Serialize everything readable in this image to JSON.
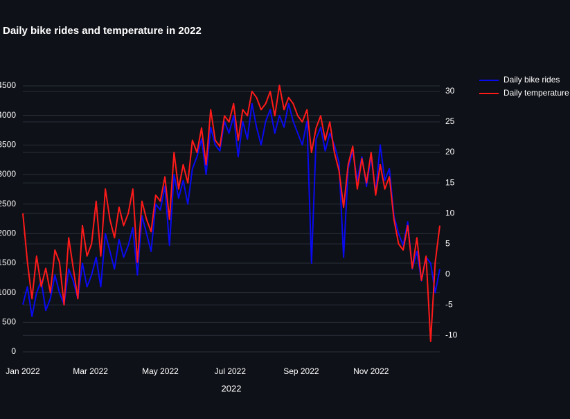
{
  "chart_data": {
    "type": "line",
    "title": "Daily bike rides and temperature in 2022",
    "x_label": "2022",
    "x": [
      1,
      5,
      9,
      13,
      17,
      21,
      25,
      29,
      33,
      37,
      41,
      45,
      49,
      53,
      57,
      61,
      65,
      69,
      73,
      77,
      81,
      85,
      89,
      93,
      97,
      101,
      105,
      109,
      113,
      117,
      121,
      125,
      129,
      133,
      137,
      141,
      145,
      149,
      153,
      157,
      161,
      165,
      169,
      173,
      177,
      181,
      185,
      189,
      193,
      197,
      201,
      205,
      209,
      213,
      217,
      221,
      225,
      229,
      233,
      237,
      241,
      245,
      249,
      253,
      257,
      261,
      265,
      269,
      273,
      277,
      281,
      285,
      289,
      293,
      297,
      301,
      305,
      309,
      313,
      317,
      321,
      325,
      329,
      333,
      337,
      341,
      345,
      349,
      353,
      357,
      361,
      365
    ],
    "xlim": [
      1,
      365
    ],
    "xticks": [
      {
        "value": 1,
        "label": "Jan 2022"
      },
      {
        "value": 60,
        "label": "Mar 2022"
      },
      {
        "value": 121,
        "label": "May 2022"
      },
      {
        "value": 182,
        "label": "Jul 2022"
      },
      {
        "value": 244,
        "label": "Sep 2022"
      },
      {
        "value": 305,
        "label": "Nov 2022"
      }
    ],
    "ylim": [
      0,
      4664
    ],
    "yticks": [
      0,
      500,
      1000,
      1500,
      2000,
      2500,
      3000,
      3500,
      4000,
      4500
    ],
    "y2lim": [
      -12.7,
      32.5
    ],
    "y2ticks": [
      -10,
      -5,
      0,
      5,
      10,
      15,
      20,
      25,
      30
    ],
    "grid": true,
    "legend": "top-right",
    "series": [
      {
        "name": "Daily bike rides",
        "color": "#0a0af0",
        "values": [
          800,
          1100,
          600,
          1000,
          1200,
          700,
          900,
          1300,
          1000,
          800,
          1400,
          1200,
          900,
          1500,
          1100,
          1300,
          1600,
          1100,
          2000,
          1700,
          1400,
          1900,
          1600,
          1800,
          2100,
          1300,
          2300,
          2000,
          1700,
          2500,
          2400,
          2800,
          1800,
          3000,
          2600,
          2900,
          2500,
          3100,
          3300,
          3600,
          3000,
          3800,
          3500,
          3400,
          3900,
          3700,
          4000,
          3300,
          3900,
          3600,
          4200,
          3800,
          3500,
          3900,
          4100,
          3700,
          4000,
          3800,
          4200,
          3900,
          3700,
          3500,
          3900,
          1500,
          3600,
          3800,
          3400,
          3700,
          3500,
          3200,
          1600,
          3100,
          3400,
          2900,
          3300,
          2800,
          3300,
          2700,
          3500,
          2900,
          3100,
          2300,
          2000,
          1800,
          2200,
          1400,
          1700,
          1200,
          1600,
          1500,
          1000,
          1400
        ]
      },
      {
        "name": "Daily temperature",
        "color": "#ff1a1a",
        "axis": "y2",
        "values": [
          10,
          2,
          -4,
          3,
          -2,
          1,
          -3,
          4,
          2,
          -5,
          6,
          1,
          -4,
          8,
          3,
          5,
          12,
          3,
          14,
          9,
          6,
          11,
          8,
          10,
          14,
          2,
          12,
          9,
          7,
          13,
          12,
          16,
          9,
          20,
          14,
          18,
          15,
          22,
          20,
          24,
          18,
          27,
          22,
          21,
          26,
          25,
          28,
          22,
          27,
          26,
          30,
          29,
          27,
          28,
          30,
          26,
          31,
          27,
          29,
          28,
          26,
          25,
          27,
          20,
          24,
          26,
          22,
          25,
          20,
          17,
          11,
          18,
          21,
          14,
          19,
          15,
          20,
          13,
          18,
          14,
          16,
          9,
          5,
          4,
          8,
          1,
          6,
          -1,
          3,
          -11,
          2,
          8
        ]
      }
    ]
  }
}
